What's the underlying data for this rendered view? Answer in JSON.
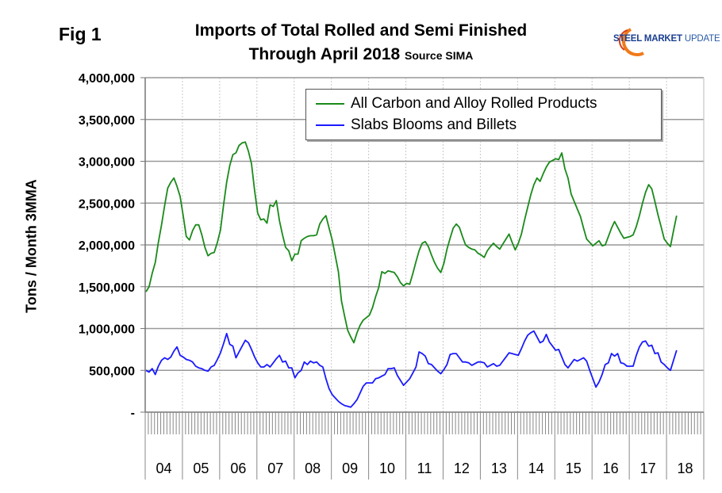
{
  "figure_label": "Fig 1",
  "logo": {
    "text_bold": "STEEL MARKET",
    "text_light": "UPDATE",
    "colors": {
      "arc": "#f07a1a",
      "text": "#1b3f8f"
    }
  },
  "chart_data": {
    "type": "line",
    "title_line1": "Imports of Total Rolled and Semi Finished",
    "title_line2": "Through April 2018",
    "source": "Source SIMA",
    "ylabel": "Tons / Month 3MMA",
    "xlabel": "",
    "x_start": "2004-01",
    "x_end": "2018-04",
    "x_frequency": "monthly",
    "x_axis_range": [
      "2004-01",
      "2018-12"
    ],
    "ylim": [
      0,
      4000000
    ],
    "yticks": [
      0,
      500000,
      1000000,
      1500000,
      2000000,
      2500000,
      3000000,
      3500000,
      4000000
    ],
    "ytick_labels": [
      "-",
      "500,000",
      "1,000,000",
      "1,500,000",
      "2,000,000",
      "2,500,000",
      "3,000,000",
      "3,500,000",
      "4,000,000"
    ],
    "xtick_labels": [
      "04",
      "05",
      "06",
      "07",
      "08",
      "09",
      "10",
      "11",
      "12",
      "13",
      "14",
      "15",
      "16",
      "17",
      "18"
    ],
    "grid": {
      "horizontal": true,
      "vertical": "dotted at years"
    },
    "legend_placement": "top-right",
    "series": [
      {
        "name": "All Carbon and Alloy Rolled Products",
        "color": "#1a8a1a",
        "values": [
          1440000,
          1500000,
          1660000,
          1790000,
          2030000,
          2240000,
          2470000,
          2680000,
          2750000,
          2800000,
          2700000,
          2580000,
          2350000,
          2100000,
          2060000,
          2170000,
          2240000,
          2240000,
          2120000,
          1970000,
          1870000,
          1900000,
          1910000,
          2030000,
          2180000,
          2480000,
          2750000,
          2950000,
          3080000,
          3100000,
          3190000,
          3220000,
          3230000,
          3120000,
          2970000,
          2650000,
          2380000,
          2300000,
          2310000,
          2260000,
          2480000,
          2460000,
          2530000,
          2290000,
          2120000,
          1970000,
          1930000,
          1810000,
          1890000,
          1890000,
          2050000,
          2080000,
          2100000,
          2110000,
          2110000,
          2120000,
          2250000,
          2310000,
          2350000,
          2200000,
          2060000,
          1870000,
          1680000,
          1330000,
          1150000,
          980000,
          900000,
          830000,
          950000,
          1040000,
          1100000,
          1130000,
          1160000,
          1250000,
          1380000,
          1490000,
          1680000,
          1660000,
          1690000,
          1680000,
          1670000,
          1620000,
          1550000,
          1510000,
          1540000,
          1530000,
          1660000,
          1800000,
          1930000,
          2020000,
          2040000,
          1980000,
          1880000,
          1790000,
          1720000,
          1670000,
          1780000,
          1950000,
          2080000,
          2200000,
          2250000,
          2210000,
          2100000,
          2000000,
          1970000,
          1950000,
          1940000,
          1900000,
          1880000,
          1850000,
          1930000,
          1980000,
          2020000,
          1980000,
          1950000,
          2010000,
          2070000,
          2130000,
          2030000,
          1940000,
          2020000,
          2130000,
          2300000,
          2450000,
          2600000,
          2720000,
          2800000,
          2760000,
          2850000,
          2930000,
          2990000,
          3010000,
          3030000,
          3020000,
          3100000,
          2910000,
          2800000,
          2610000,
          2520000,
          2430000,
          2340000,
          2200000,
          2070000,
          2030000,
          1990000,
          2020000,
          2050000,
          1990000,
          2000000,
          2100000,
          2200000,
          2280000,
          2210000,
          2140000,
          2080000,
          2090000,
          2100000,
          2120000,
          2220000,
          2350000,
          2500000,
          2630000,
          2720000,
          2670000,
          2520000,
          2360000,
          2220000,
          2070000,
          2020000,
          1980000,
          2170000,
          2350000
        ]
      },
      {
        "name": "Slabs Blooms and Billets",
        "color": "#1a1aff",
        "values": [
          500000,
          480000,
          520000,
          450000,
          550000,
          620000,
          650000,
          630000,
          660000,
          730000,
          780000,
          680000,
          660000,
          630000,
          620000,
          600000,
          550000,
          530000,
          520000,
          500000,
          490000,
          540000,
          560000,
          630000,
          710000,
          820000,
          940000,
          810000,
          790000,
          650000,
          720000,
          790000,
          860000,
          830000,
          750000,
          660000,
          590000,
          540000,
          540000,
          570000,
          540000,
          590000,
          640000,
          680000,
          600000,
          610000,
          530000,
          530000,
          410000,
          470000,
          500000,
          600000,
          570000,
          610000,
          590000,
          600000,
          560000,
          540000,
          400000,
          280000,
          210000,
          170000,
          130000,
          100000,
          80000,
          70000,
          60000,
          100000,
          150000,
          230000,
          310000,
          350000,
          350000,
          350000,
          400000,
          410000,
          430000,
          450000,
          520000,
          520000,
          530000,
          440000,
          380000,
          320000,
          360000,
          400000,
          470000,
          540000,
          720000,
          700000,
          670000,
          580000,
          570000,
          530000,
          490000,
          460000,
          510000,
          570000,
          690000,
          700000,
          700000,
          650000,
          600000,
          600000,
          590000,
          560000,
          580000,
          600000,
          600000,
          590000,
          540000,
          560000,
          580000,
          550000,
          560000,
          610000,
          660000,
          710000,
          700000,
          690000,
          680000,
          760000,
          850000,
          920000,
          950000,
          970000,
          900000,
          830000,
          850000,
          930000,
          840000,
          790000,
          740000,
          750000,
          660000,
          570000,
          530000,
          580000,
          630000,
          610000,
          630000,
          650000,
          610000,
          500000,
          400000,
          300000,
          360000,
          450000,
          570000,
          590000,
          700000,
          670000,
          700000,
          590000,
          580000,
          550000,
          550000,
          550000,
          680000,
          780000,
          840000,
          850000,
          790000,
          800000,
          700000,
          710000,
          600000,
          570000,
          530000,
          500000,
          620000,
          740000
        ]
      }
    ]
  }
}
